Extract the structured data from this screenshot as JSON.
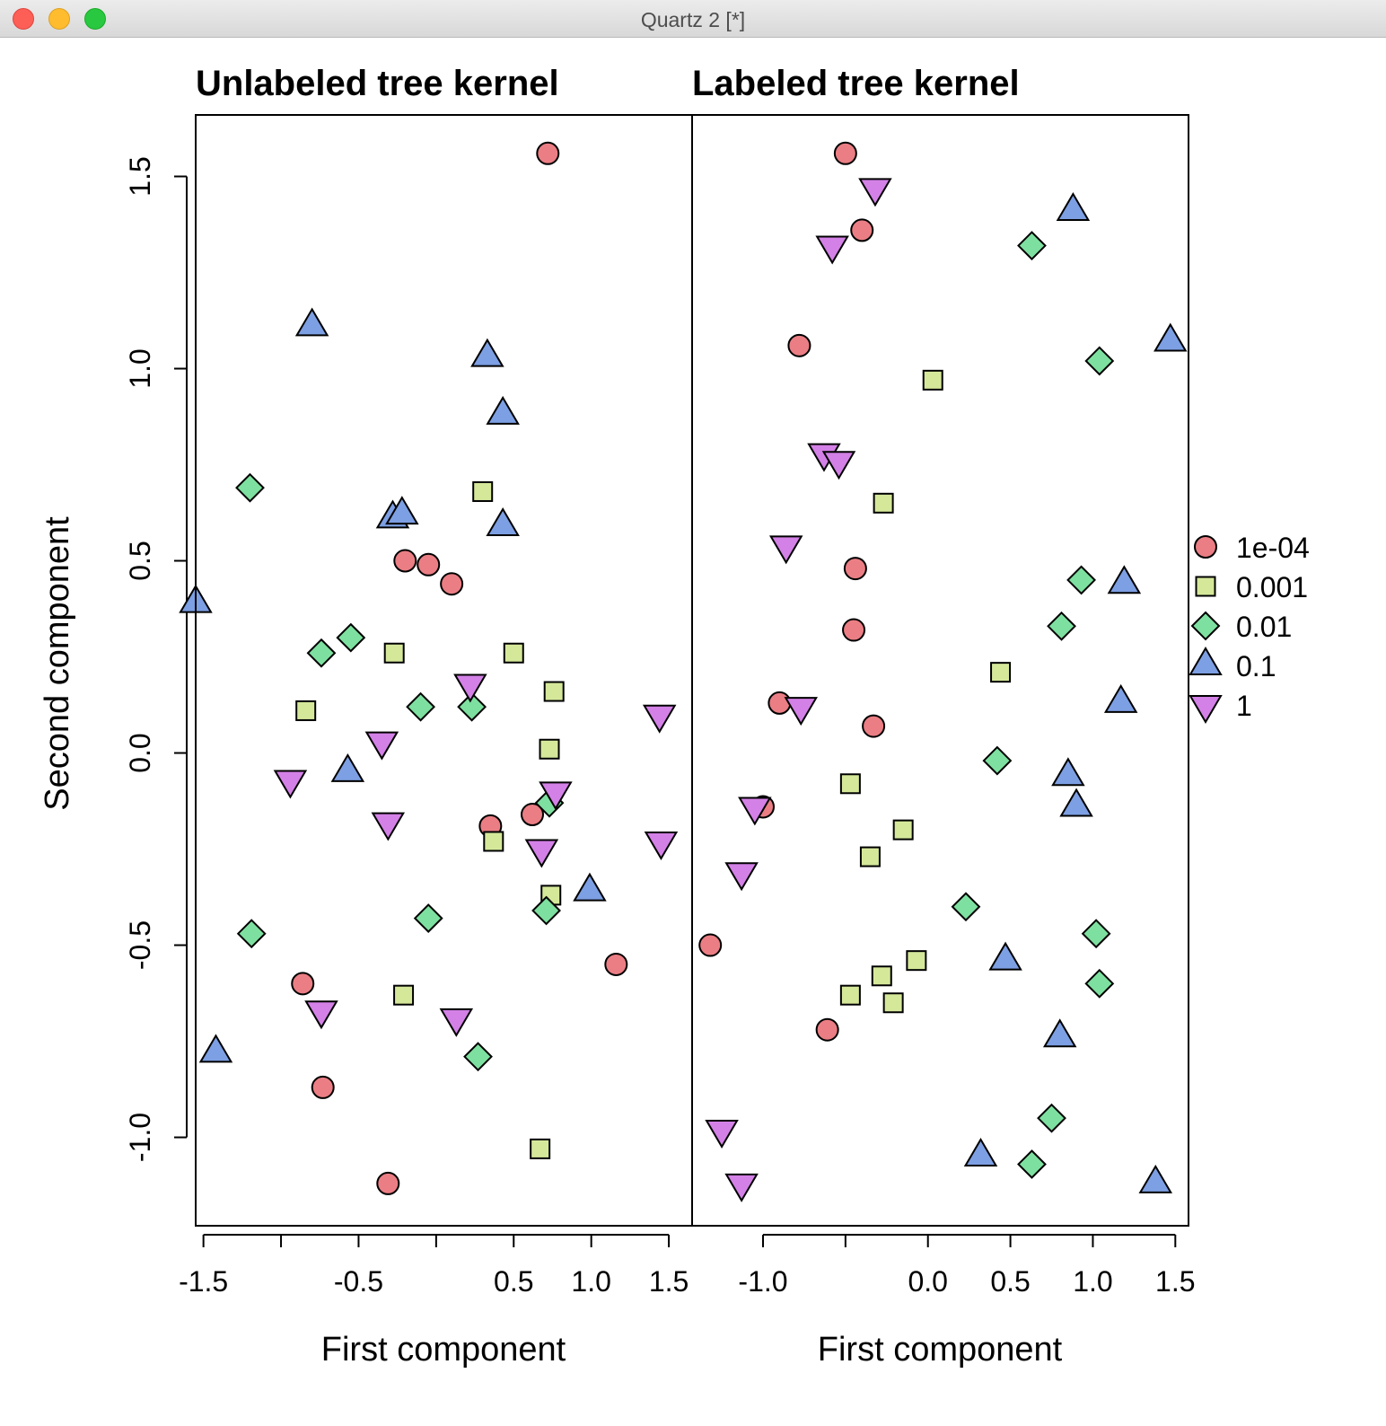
{
  "window": {
    "title": "Quartz 2 [*]"
  },
  "y_axis_label": "Second component",
  "colors": {
    "1e-04": "#ea7e84",
    "0.001": "#d5e89a",
    "0.01": "#7ee0a0",
    "0.1": "#7d9fe3",
    "1": "#d381e6"
  },
  "legend": {
    "placement": "right",
    "entries": [
      {
        "label": "1e-04",
        "shape": "circle"
      },
      {
        "label": "0.001",
        "shape": "square"
      },
      {
        "label": "0.01",
        "shape": "diamond"
      },
      {
        "label": "0.1",
        "shape": "triangle-up"
      },
      {
        "label": "1",
        "shape": "triangle-down"
      }
    ]
  },
  "chart_data": [
    {
      "type": "scatter",
      "title": "Unlabeled tree kernel",
      "xlabel": "First component",
      "ylabel": "Second component",
      "xlim": [
        -1.55,
        1.65
      ],
      "ylim": [
        -1.23,
        1.66
      ],
      "xticks": [
        -1.5,
        -1.0,
        -0.5,
        0.0,
        0.5,
        1.0,
        1.5
      ],
      "xtick_labels": [
        "-1.5",
        "",
        "-0.5",
        "",
        "0.5",
        "1.0",
        "1.5"
      ],
      "yticks": [
        -1.0,
        -0.5,
        0.0,
        0.5,
        1.0,
        1.5
      ],
      "ytick_labels": [
        "-1.0",
        "-0.5",
        "0.0",
        "0.5",
        "1.0",
        "1.5"
      ],
      "series": [
        {
          "name": "1e-04",
          "shape": "circle",
          "points": [
            [
              0.72,
              1.56
            ],
            [
              -0.2,
              0.5
            ],
            [
              -0.05,
              0.49
            ],
            [
              0.1,
              0.44
            ],
            [
              0.35,
              -0.19
            ],
            [
              0.62,
              -0.16
            ],
            [
              1.16,
              -0.55
            ],
            [
              -0.86,
              -0.6
            ],
            [
              -0.73,
              -0.87
            ],
            [
              -0.31,
              -1.12
            ]
          ]
        },
        {
          "name": "0.001",
          "shape": "square",
          "points": [
            [
              0.3,
              0.68
            ],
            [
              -0.27,
              0.26
            ],
            [
              0.5,
              0.26
            ],
            [
              0.76,
              0.16
            ],
            [
              -0.84,
              0.11
            ],
            [
              0.73,
              0.01
            ],
            [
              0.37,
              -0.23
            ],
            [
              0.74,
              -0.37
            ],
            [
              -0.21,
              -0.63
            ],
            [
              0.67,
              -1.03
            ]
          ]
        },
        {
          "name": "0.01",
          "shape": "diamond",
          "points": [
            [
              -1.2,
              0.69
            ],
            [
              -0.55,
              0.3
            ],
            [
              -0.74,
              0.26
            ],
            [
              -0.1,
              0.12
            ],
            [
              0.23,
              0.12
            ],
            [
              0.73,
              -0.13
            ],
            [
              0.71,
              -0.41
            ],
            [
              -0.05,
              -0.43
            ],
            [
              -1.19,
              -0.47
            ],
            [
              0.27,
              -0.79
            ]
          ]
        },
        {
          "name": "0.1",
          "shape": "triangle-up",
          "points": [
            [
              -0.8,
              1.11
            ],
            [
              0.33,
              1.03
            ],
            [
              0.43,
              0.88
            ],
            [
              -0.28,
              0.61
            ],
            [
              -0.22,
              0.62
            ],
            [
              0.43,
              0.59
            ],
            [
              -1.55,
              0.39
            ],
            [
              -0.57,
              -0.05
            ],
            [
              0.99,
              -0.36
            ],
            [
              -1.42,
              -0.78
            ]
          ]
        },
        {
          "name": "1",
          "shape": "triangle-down",
          "points": [
            [
              0.22,
              0.18
            ],
            [
              1.44,
              0.1
            ],
            [
              -0.35,
              0.03
            ],
            [
              -0.94,
              -0.07
            ],
            [
              0.77,
              -0.1
            ],
            [
              -0.31,
              -0.18
            ],
            [
              0.68,
              -0.25
            ],
            [
              1.45,
              -0.23
            ],
            [
              -0.74,
              -0.67
            ],
            [
              0.13,
              -0.69
            ]
          ]
        }
      ]
    },
    {
      "type": "scatter",
      "title": "Labeled tree kernel",
      "xlabel": "First component",
      "ylabel": "Second component",
      "xlim": [
        -1.43,
        1.58
      ],
      "ylim": [
        -1.23,
        1.66
      ],
      "xticks": [
        -1.0,
        -0.5,
        0.0,
        0.5,
        1.0,
        1.5
      ],
      "xtick_labels": [
        "-1.0",
        "",
        "0.0",
        "0.5",
        "1.0",
        "1.5"
      ],
      "yticks": [
        -1.0,
        -0.5,
        0.0,
        0.5,
        1.0,
        1.5
      ],
      "ytick_labels": [
        "-1.0",
        "-0.5",
        "0.0",
        "0.5",
        "1.0",
        "1.5"
      ],
      "series": [
        {
          "name": "1e-04",
          "shape": "circle",
          "points": [
            [
              -0.5,
              1.56
            ],
            [
              -0.4,
              1.36
            ],
            [
              -0.78,
              1.06
            ],
            [
              -0.44,
              0.48
            ],
            [
              -0.45,
              0.32
            ],
            [
              -0.9,
              0.13
            ],
            [
              -0.33,
              0.07
            ],
            [
              -1.0,
              -0.14
            ],
            [
              -1.32,
              -0.5
            ],
            [
              -0.61,
              -0.72
            ]
          ]
        },
        {
          "name": "0.001",
          "shape": "square",
          "points": [
            [
              0.03,
              0.97
            ],
            [
              -0.27,
              0.65
            ],
            [
              0.44,
              0.21
            ],
            [
              -0.47,
              -0.08
            ],
            [
              -0.15,
              -0.2
            ],
            [
              -0.35,
              -0.27
            ],
            [
              -0.07,
              -0.54
            ],
            [
              -0.28,
              -0.58
            ],
            [
              -0.47,
              -0.63
            ],
            [
              -0.21,
              -0.65
            ]
          ]
        },
        {
          "name": "0.01",
          "shape": "diamond",
          "points": [
            [
              0.63,
              1.32
            ],
            [
              1.04,
              1.02
            ],
            [
              0.93,
              0.45
            ],
            [
              0.81,
              0.33
            ],
            [
              0.42,
              -0.02
            ],
            [
              0.23,
              -0.4
            ],
            [
              1.02,
              -0.47
            ],
            [
              1.04,
              -0.6
            ],
            [
              0.75,
              -0.95
            ],
            [
              0.63,
              -1.07
            ]
          ]
        },
        {
          "name": "0.1",
          "shape": "triangle-up",
          "points": [
            [
              0.88,
              1.41
            ],
            [
              1.47,
              1.07
            ],
            [
              1.19,
              0.44
            ],
            [
              1.17,
              0.13
            ],
            [
              0.85,
              -0.06
            ],
            [
              0.9,
              -0.14
            ],
            [
              0.47,
              -0.54
            ],
            [
              0.8,
              -0.74
            ],
            [
              0.32,
              -1.05
            ],
            [
              1.38,
              -1.12
            ]
          ]
        },
        {
          "name": "1",
          "shape": "triangle-down",
          "points": [
            [
              -0.32,
              1.47
            ],
            [
              -0.58,
              1.32
            ],
            [
              -0.63,
              0.78
            ],
            [
              -0.54,
              0.76
            ],
            [
              -0.86,
              0.54
            ],
            [
              -0.77,
              0.12
            ],
            [
              -1.05,
              -0.14
            ],
            [
              -1.13,
              -0.31
            ],
            [
              -1.25,
              -0.98
            ],
            [
              -1.13,
              -1.12
            ]
          ]
        }
      ]
    }
  ]
}
